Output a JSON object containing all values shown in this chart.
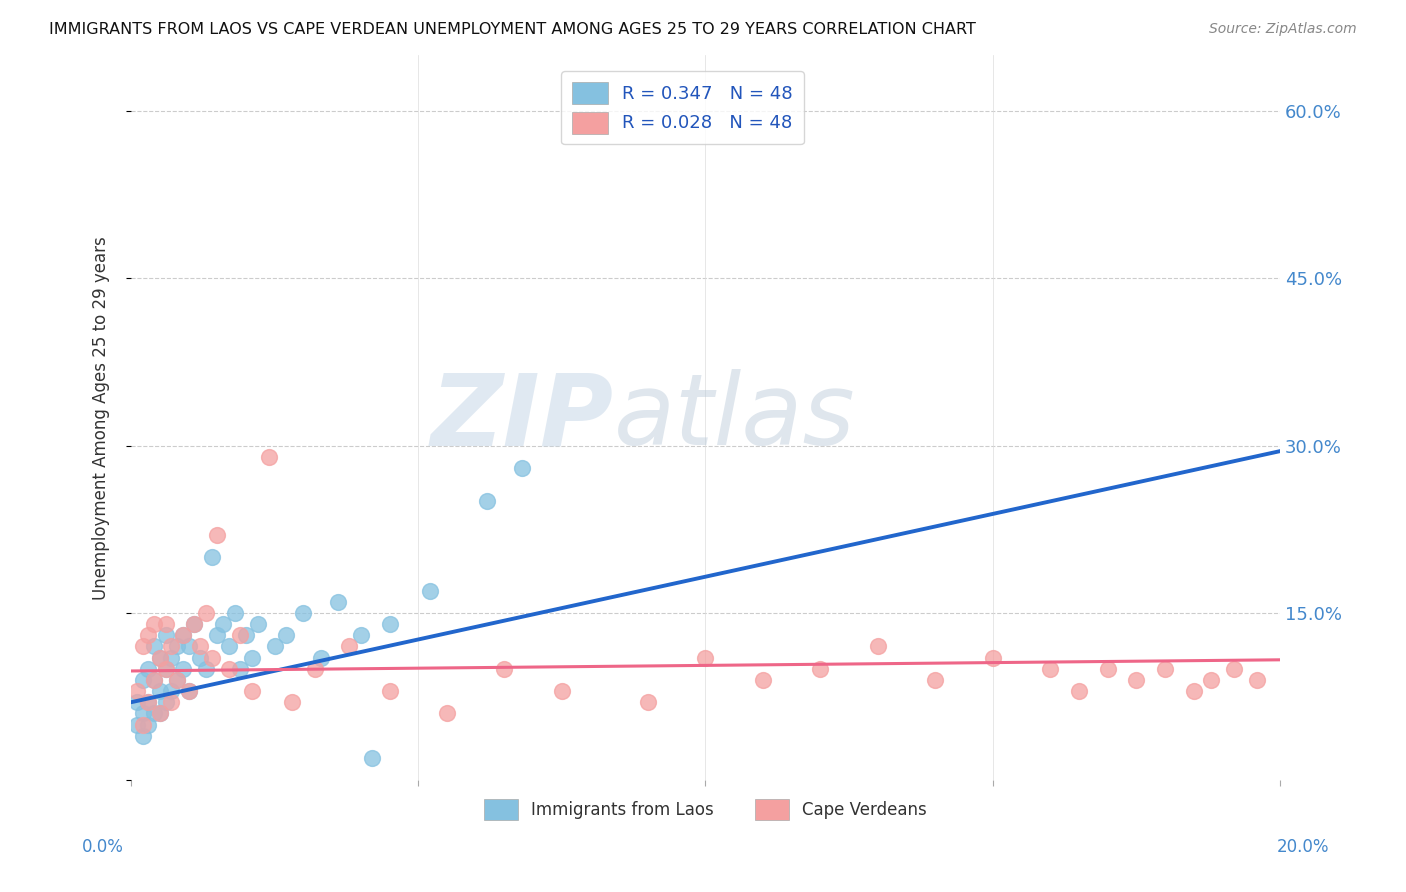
{
  "title": "IMMIGRANTS FROM LAOS VS CAPE VERDEAN UNEMPLOYMENT AMONG AGES 25 TO 29 YEARS CORRELATION CHART",
  "source": "Source: ZipAtlas.com",
  "ylabel": "Unemployment Among Ages 25 to 29 years",
  "xlim": [
    0.0,
    0.2
  ],
  "ylim": [
    0.0,
    0.65
  ],
  "watermark_zip": "ZIP",
  "watermark_atlas": "atlas",
  "legend_label1": "R = 0.347   N = 48",
  "legend_label2": "R = 0.028   N = 48",
  "legend_label_bottom1": "Immigrants from Laos",
  "legend_label_bottom2": "Cape Verdeans",
  "color_blue": "#85c1e0",
  "color_pink": "#f4a0a0",
  "color_line_blue": "#2266cc",
  "color_line_pink": "#ee6688",
  "grid_color": "#cccccc",
  "blue_line_x0": 0.0,
  "blue_line_y0": 0.07,
  "blue_line_x1": 0.2,
  "blue_line_y1": 0.295,
  "pink_line_x0": 0.0,
  "pink_line_y0": 0.098,
  "pink_line_x1": 0.2,
  "pink_line_y1": 0.108,
  "laos_x": [
    0.001,
    0.001,
    0.002,
    0.002,
    0.002,
    0.003,
    0.003,
    0.003,
    0.004,
    0.004,
    0.004,
    0.005,
    0.005,
    0.005,
    0.006,
    0.006,
    0.006,
    0.007,
    0.007,
    0.008,
    0.008,
    0.009,
    0.009,
    0.01,
    0.01,
    0.011,
    0.012,
    0.013,
    0.014,
    0.015,
    0.016,
    0.017,
    0.018,
    0.019,
    0.02,
    0.021,
    0.022,
    0.025,
    0.027,
    0.03,
    0.033,
    0.036,
    0.04,
    0.042,
    0.045,
    0.052,
    0.062,
    0.068
  ],
  "laos_y": [
    0.05,
    0.07,
    0.04,
    0.06,
    0.09,
    0.05,
    0.07,
    0.1,
    0.06,
    0.09,
    0.12,
    0.06,
    0.08,
    0.11,
    0.07,
    0.1,
    0.13,
    0.08,
    0.11,
    0.09,
    0.12,
    0.1,
    0.13,
    0.08,
    0.12,
    0.14,
    0.11,
    0.1,
    0.2,
    0.13,
    0.14,
    0.12,
    0.15,
    0.1,
    0.13,
    0.11,
    0.14,
    0.12,
    0.13,
    0.15,
    0.11,
    0.16,
    0.13,
    0.02,
    0.14,
    0.17,
    0.25,
    0.28
  ],
  "cv_x": [
    0.001,
    0.002,
    0.002,
    0.003,
    0.003,
    0.004,
    0.004,
    0.005,
    0.005,
    0.006,
    0.006,
    0.007,
    0.007,
    0.008,
    0.009,
    0.01,
    0.011,
    0.012,
    0.013,
    0.014,
    0.015,
    0.017,
    0.019,
    0.021,
    0.024,
    0.028,
    0.032,
    0.038,
    0.045,
    0.055,
    0.065,
    0.075,
    0.09,
    0.1,
    0.11,
    0.12,
    0.13,
    0.14,
    0.15,
    0.16,
    0.165,
    0.17,
    0.175,
    0.18,
    0.185,
    0.188,
    0.192,
    0.196
  ],
  "cv_y": [
    0.08,
    0.05,
    0.12,
    0.07,
    0.13,
    0.09,
    0.14,
    0.06,
    0.11,
    0.1,
    0.14,
    0.07,
    0.12,
    0.09,
    0.13,
    0.08,
    0.14,
    0.12,
    0.15,
    0.11,
    0.22,
    0.1,
    0.13,
    0.08,
    0.29,
    0.07,
    0.1,
    0.12,
    0.08,
    0.06,
    0.1,
    0.08,
    0.07,
    0.11,
    0.09,
    0.1,
    0.12,
    0.09,
    0.11,
    0.1,
    0.08,
    0.1,
    0.09,
    0.1,
    0.08,
    0.09,
    0.1,
    0.09
  ]
}
